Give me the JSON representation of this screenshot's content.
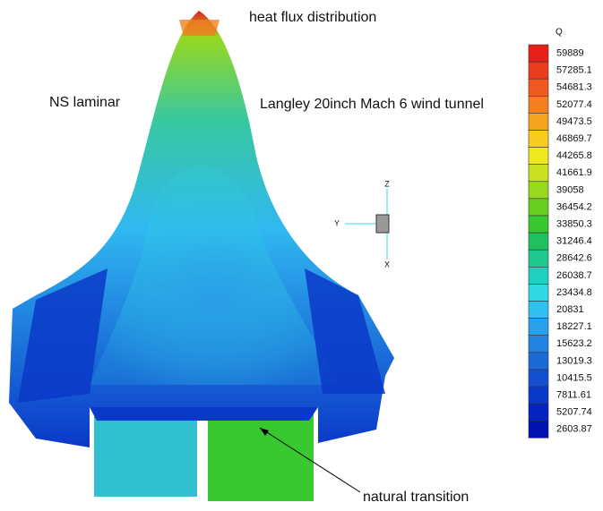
{
  "title": "heat flux distribution",
  "left_label": "NS laminar",
  "right_label": "Langley 20inch Mach 6 wind tunnel",
  "annotation": "natural transition",
  "triad": {
    "z": "Z",
    "y": "Y",
    "x": "X"
  },
  "legend": {
    "title": "Q",
    "levels": [
      59889,
      57285.1,
      54681.3,
      52077.4,
      49473.5,
      46869.7,
      44265.8,
      41661.9,
      39058,
      36454.2,
      33850.3,
      31246.4,
      28642.6,
      26038.7,
      23434.8,
      20831,
      18227.1,
      15623.2,
      13019.3,
      10415.5,
      7811.61,
      5207.74,
      2603.87
    ],
    "colors": [
      "#e8201a",
      "#ec3c1e",
      "#f05a20",
      "#f28020",
      "#f5a420",
      "#f8cc20",
      "#f0e820",
      "#c8e020",
      "#98d820",
      "#68d020",
      "#38c830",
      "#20c060",
      "#20c890",
      "#20d0c0",
      "#30d8e4",
      "#30c0f0",
      "#2aa0e8",
      "#2284e0",
      "#1a6ad8",
      "#1250d0",
      "#0a38c8",
      "#0422c0",
      "#0012b0"
    ]
  }
}
